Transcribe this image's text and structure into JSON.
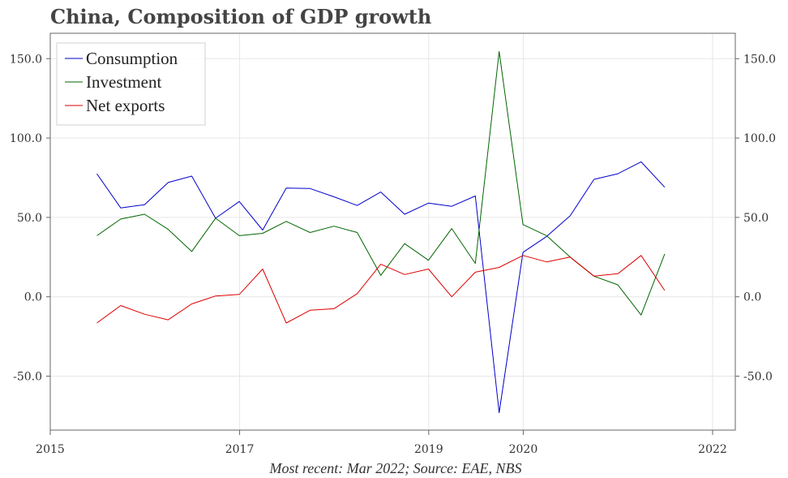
{
  "title": "China, Composition of GDP growth",
  "source": "Most recent: Mar 2022; Source: EAE, NBS",
  "chart_data": {
    "type": "line",
    "x": [
      "2015-06-30",
      "2015-09-30",
      "2015-12-31",
      "2016-03-31",
      "2016-06-30",
      "2016-09-30",
      "2016-12-31",
      "2017-03-31",
      "2017-06-30",
      "2017-09-30",
      "2017-12-31",
      "2018-03-31",
      "2018-06-30",
      "2018-09-30",
      "2018-12-31",
      "2019-03-31",
      "2019-06-30",
      "2019-09-30",
      "2019-12-31",
      "2020-03-31",
      "2020-06-30",
      "2020-09-30",
      "2020-12-31",
      "2021-03-31",
      "2021-06-30",
      "2021-09-30",
      "2021-12-31",
      "2022-03-31"
    ],
    "series": [
      {
        "name": "Consumption",
        "color": "#0000cc",
        "values": [
          77.5,
          56,
          58,
          72,
          76,
          49.5,
          60,
          42,
          68.5,
          68.2,
          63,
          57.5,
          66,
          52,
          59,
          57,
          63.5,
          -73,
          28,
          38,
          51,
          74,
          77.5,
          85,
          69,
          null,
          null,
          null
        ]
      },
      {
        "name": "Investment",
        "color": "#006600",
        "values": [
          38.5,
          49,
          52,
          42.5,
          28.5,
          49.5,
          38.5,
          40,
          47.5,
          40.5,
          44.5,
          40.5,
          13.5,
          33.5,
          23,
          43,
          21,
          154.5,
          45.5,
          38.5,
          25,
          13,
          7.5,
          -11.5,
          27,
          null,
          null,
          null
        ]
      },
      {
        "name": "Net exports",
        "color": "#dd0000",
        "values": [
          -16.5,
          -5.5,
          -11,
          -14.5,
          -4.5,
          0.5,
          1.5,
          17.5,
          -16.5,
          -8.5,
          -7.5,
          2,
          20.5,
          14,
          17.5,
          0,
          15.5,
          18.5,
          26,
          22,
          25,
          13,
          14.5,
          26,
          4,
          null,
          null,
          null
        ]
      }
    ],
    "x_ticks": [
      "2015",
      "2017",
      "2019",
      "2020",
      "2022"
    ],
    "y_ticks": [
      "150.0",
      "100.0",
      "50.0",
      "0.0",
      "-50.0"
    ],
    "ylim": [
      -84,
      166
    ],
    "grid": true,
    "legend_position": "top-left"
  }
}
